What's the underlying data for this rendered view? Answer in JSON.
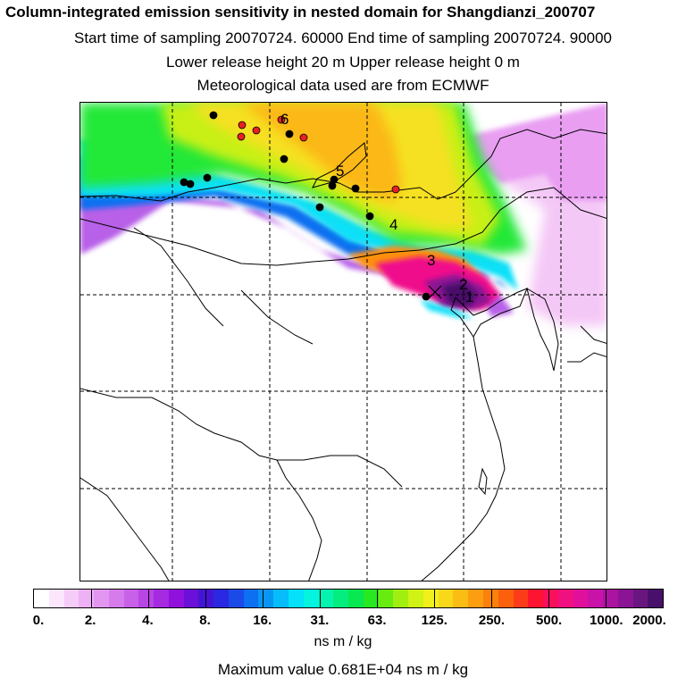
{
  "header": {
    "title": "Column-integrated emission sensitivity in nested domain for Shangdianzi_200707",
    "line1": "Start time of sampling 20070724. 60000     End time of sampling 20070724. 90000",
    "line2": "Lower release height   20 m          Upper release height    0 m",
    "line3": "Meteorological data used are from ECMWF"
  },
  "map": {
    "labels": [
      "1",
      "2",
      "3",
      "4",
      "5",
      "6"
    ]
  },
  "colorbar": {
    "colors": [
      "#ffffff",
      "#fbe6fb",
      "#f5ccf8",
      "#eeb1f5",
      "#e396f0",
      "#d67bec",
      "#c860e8",
      "#b845e4",
      "#a62ae0",
      "#9010dc",
      "#6a10d8",
      "#4414d4",
      "#2a28e0",
      "#1a4ae8",
      "#0c70f0",
      "#0896f5",
      "#06bcfa",
      "#05e0fb",
      "#04f4e0",
      "#04f4b0",
      "#04ee80",
      "#08e850",
      "#28e820",
      "#68ec10",
      "#a0ef10",
      "#d0f214",
      "#f2f01c",
      "#f8d818",
      "#fbbc14",
      "#fc9e10",
      "#fc800c",
      "#fc600c",
      "#fc3c18",
      "#fc1430",
      "#f8105c",
      "#f01080",
      "#e0109c",
      "#c812a8",
      "#aa14a0",
      "#8a1494",
      "#6a1680",
      "#48106a"
    ],
    "tick_labels": [
      "0.",
      "2.",
      "4.",
      "8.",
      "16.",
      "31.",
      "63.",
      "125.",
      "250.",
      "500.",
      "1000.",
      "2000."
    ],
    "unit": "ns m / kg"
  },
  "max_value_text": "Maximum value  0.681E+04 ns m / kg"
}
